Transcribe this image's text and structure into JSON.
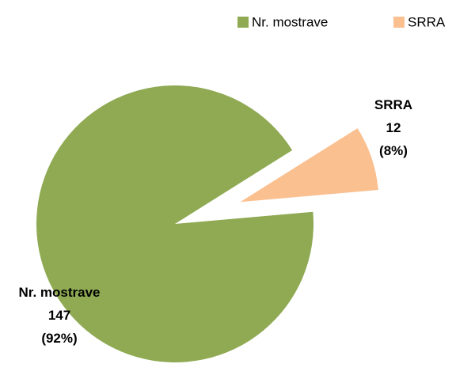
{
  "chart_data": {
    "type": "pie",
    "categories": [
      "Nr. mostrave",
      "SRRA"
    ],
    "values": [
      147,
      12
    ],
    "percentages": [
      92,
      8
    ],
    "percentage_labels": [
      "(92%)",
      "(8%)"
    ],
    "colors": [
      "#8faa53",
      "#fac090"
    ],
    "legend": "top-right"
  }
}
